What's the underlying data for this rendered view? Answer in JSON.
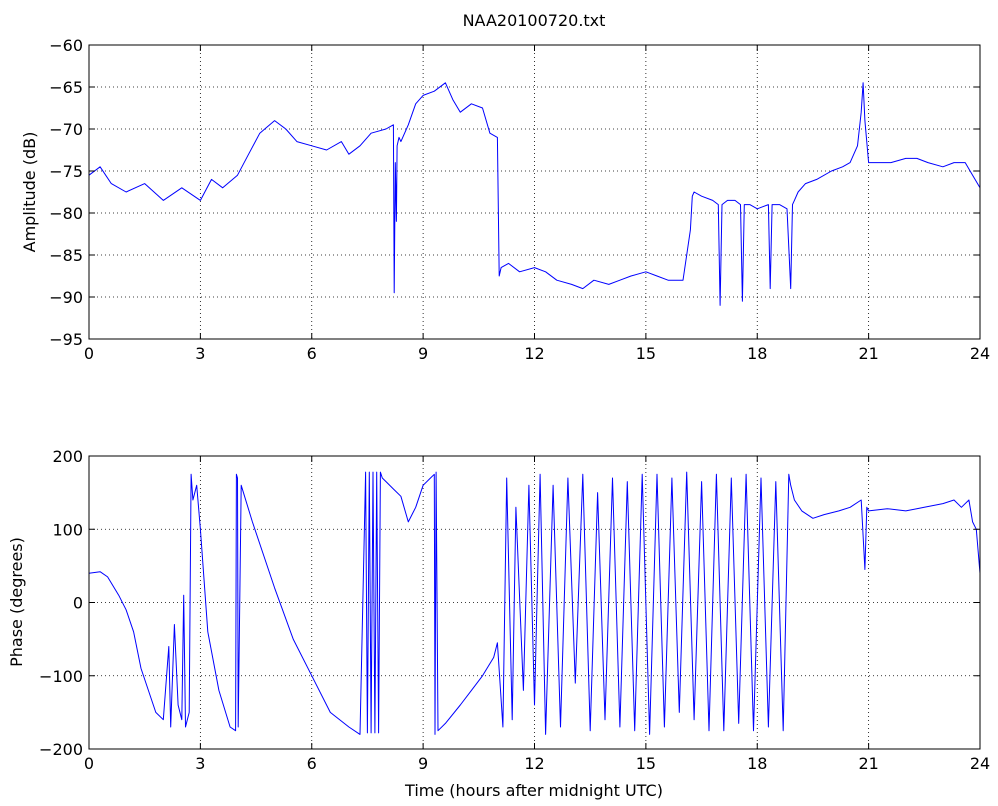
{
  "colors": {
    "trace": "#0000ff",
    "axes": "#000000",
    "background": "#ffffff"
  },
  "chart_data": [
    {
      "type": "line",
      "title": "NAA20100720.txt",
      "xlabel": "",
      "ylabel": "Amplitude (dB)",
      "xlim": [
        0,
        24
      ],
      "ylim": [
        -95,
        -60
      ],
      "xticks": [
        0,
        3,
        6,
        9,
        12,
        15,
        18,
        21,
        24
      ],
      "yticks": [
        -95,
        -90,
        -85,
        -80,
        -75,
        -70,
        -65,
        -60
      ],
      "grid": true,
      "series": [
        {
          "x": [
            0,
            0.3,
            0.6,
            1.0,
            1.5,
            2.0,
            2.5,
            3.0,
            3.3,
            3.6,
            4.0,
            4.3,
            4.6,
            5.0,
            5.3,
            5.6,
            6.0,
            6.4,
            6.8,
            7.0,
            7.3,
            7.6,
            8.0,
            8.2,
            8.22,
            8.25,
            8.28,
            8.3,
            8.35,
            8.4,
            8.6,
            8.8,
            9.0,
            9.3,
            9.6,
            9.8,
            10.0,
            10.3,
            10.6,
            10.8,
            11.0,
            11.05,
            11.1,
            11.3,
            11.6,
            12.0,
            12.3,
            12.6,
            13.0,
            13.3,
            13.6,
            14.0,
            14.3,
            14.6,
            15.0,
            15.3,
            15.6,
            16.0,
            16.2,
            16.25,
            16.3,
            16.5,
            16.8,
            16.95,
            17.0,
            17.05,
            17.2,
            17.4,
            17.55,
            17.6,
            17.65,
            17.8,
            18.0,
            18.3,
            18.35,
            18.4,
            18.6,
            18.8,
            18.9,
            18.95,
            19.0,
            19.1,
            19.3,
            19.6,
            20.0,
            20.3,
            20.5,
            20.7,
            20.8,
            20.85,
            20.9,
            21.0,
            21.3,
            21.6,
            22.0,
            22.3,
            22.6,
            23.0,
            23.3,
            23.6,
            23.8,
            24.0
          ],
          "y": [
            -75.5,
            -74.5,
            -76.5,
            -77.5,
            -76.5,
            -78.5,
            -77.0,
            -78.5,
            -76.0,
            -77.0,
            -75.5,
            -73.0,
            -70.5,
            -69.0,
            -70.0,
            -71.5,
            -72.0,
            -72.5,
            -71.5,
            -73.0,
            -72.0,
            -70.5,
            -70.0,
            -69.5,
            -89.5,
            -74.0,
            -81.0,
            -72.0,
            -71.0,
            -71.5,
            -69.5,
            -67.0,
            -66.0,
            -65.5,
            -64.5,
            -66.5,
            -68.0,
            -67.0,
            -67.5,
            -70.5,
            -71.0,
            -87.5,
            -86.5,
            -86.0,
            -87.0,
            -86.5,
            -87.0,
            -88.0,
            -88.5,
            -89.0,
            -88.0,
            -88.5,
            -88.0,
            -87.5,
            -87.0,
            -87.5,
            -88.0,
            -88.0,
            -82.0,
            -78.0,
            -77.5,
            -78.0,
            -78.5,
            -79.0,
            -91.0,
            -79.0,
            -78.5,
            -78.5,
            -79.0,
            -90.5,
            -79.0,
            -79.0,
            -79.5,
            -79.0,
            -89.0,
            -79.0,
            -79.0,
            -79.5,
            -89.0,
            -79.0,
            -78.5,
            -77.5,
            -76.5,
            -76.0,
            -75.0,
            -74.5,
            -74.0,
            -72.0,
            -68.0,
            -64.5,
            -69.0,
            -74.0,
            -74.0,
            -74.0,
            -73.5,
            -73.5,
            -74.0,
            -74.5,
            -74.0,
            -74.0,
            -75.5,
            -77.0
          ]
        }
      ]
    },
    {
      "type": "line",
      "title": "",
      "xlabel": "Time (hours after midnight UTC)",
      "ylabel": "Phase (degrees)",
      "xlim": [
        0,
        24
      ],
      "ylim": [
        -200,
        200
      ],
      "xticks": [
        0,
        3,
        6,
        9,
        12,
        15,
        18,
        21,
        24
      ],
      "yticks": [
        -200,
        -100,
        0,
        100,
        200
      ],
      "grid": true,
      "series": [
        {
          "x": [
            0,
            0.3,
            0.5,
            0.8,
            1.0,
            1.2,
            1.4,
            1.6,
            1.8,
            2.0,
            2.15,
            2.2,
            2.3,
            2.4,
            2.5,
            2.55,
            2.6,
            2.7,
            2.75,
            2.8,
            2.9,
            3.0,
            3.2,
            3.5,
            3.8,
            3.95,
            3.97,
            4.0,
            4.02,
            4.1,
            4.4,
            5.0,
            5.5,
            6.0,
            6.5,
            7.0,
            7.3,
            7.45,
            7.5,
            7.55,
            7.6,
            7.65,
            7.7,
            7.75,
            7.8,
            7.85,
            7.9,
            8.0,
            8.2,
            8.4,
            8.6,
            8.8,
            9.0,
            9.2,
            9.3,
            9.32,
            9.35,
            9.4,
            9.6,
            10.0,
            10.3,
            10.6,
            10.9,
            11.0,
            11.15,
            11.25,
            11.4,
            11.5,
            11.7,
            11.85,
            12.0,
            12.15,
            12.3,
            12.5,
            12.7,
            12.9,
            13.1,
            13.3,
            13.5,
            13.7,
            13.9,
            14.1,
            14.3,
            14.5,
            14.7,
            14.9,
            15.1,
            15.3,
            15.5,
            15.7,
            15.9,
            16.1,
            16.3,
            16.5,
            16.7,
            16.9,
            17.1,
            17.3,
            17.5,
            17.7,
            17.9,
            18.1,
            18.3,
            18.5,
            18.7,
            18.85,
            18.9,
            19.0,
            19.2,
            19.5,
            19.8,
            20.2,
            20.5,
            20.8,
            20.9,
            20.95,
            21.0,
            21.5,
            22.0,
            22.5,
            23.0,
            23.3,
            23.5,
            23.7,
            23.8,
            23.9,
            24.0
          ],
          "y": [
            40,
            42,
            35,
            10,
            -10,
            -40,
            -90,
            -120,
            -150,
            -160,
            -60,
            -170,
            -30,
            -140,
            -160,
            10,
            -170,
            -150,
            175,
            140,
            160,
            100,
            -40,
            -120,
            -170,
            -175,
            175,
            170,
            -170,
            160,
            110,
            20,
            -50,
            -100,
            -150,
            -170,
            -180,
            178,
            -178,
            178,
            -178,
            178,
            -178,
            178,
            -178,
            178,
            170,
            165,
            155,
            145,
            110,
            130,
            160,
            170,
            175,
            -180,
            178,
            -175,
            -165,
            -140,
            -120,
            -100,
            -75,
            -55,
            -170,
            170,
            -160,
            130,
            -120,
            160,
            -140,
            175,
            -180,
            160,
            -170,
            170,
            -110,
            175,
            -175,
            150,
            -160,
            170,
            -170,
            165,
            -175,
            175,
            -180,
            175,
            -170,
            170,
            -150,
            178,
            -160,
            165,
            -175,
            175,
            -175,
            170,
            -165,
            175,
            -175,
            170,
            -170,
            165,
            -175,
            175,
            160,
            140,
            125,
            115,
            120,
            125,
            130,
            140,
            45,
            130,
            125,
            128,
            125,
            130,
            135,
            140,
            130,
            140,
            110,
            100,
            40
          ]
        }
      ]
    }
  ]
}
